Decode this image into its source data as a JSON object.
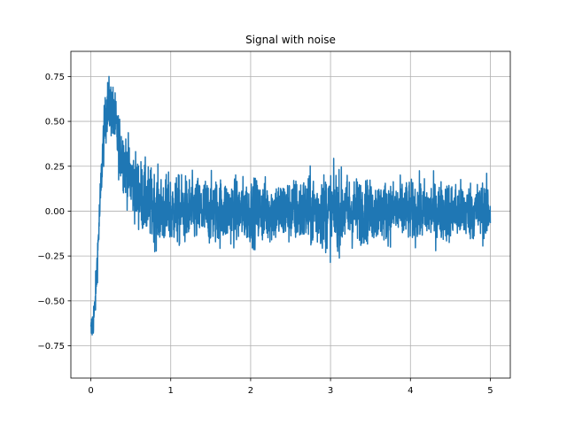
{
  "chart_data": {
    "type": "line",
    "title": "Signal with noise",
    "xlabel": "",
    "ylabel": "",
    "xlim": [
      -0.25,
      5.25
    ],
    "ylim": [
      -0.93,
      0.89
    ],
    "x_ticks": [
      0,
      1,
      2,
      3,
      4,
      5
    ],
    "x_tick_labels": [
      "0",
      "1",
      "2",
      "3",
      "4",
      "5"
    ],
    "y_ticks": [
      -0.75,
      -0.5,
      -0.25,
      0.0,
      0.25,
      0.5,
      0.75
    ],
    "y_tick_labels": [
      "−0.75",
      "−0.50",
      "−0.25",
      "0.00",
      "0.25",
      "0.50",
      "0.75"
    ],
    "grid": true,
    "line_color": "#1f77b4",
    "series": [
      {
        "x_range": [
          0,
          5
        ],
        "trend": {
          "x": [
            0,
            0.05,
            0.1,
            0.15,
            0.2,
            0.25,
            0.3,
            0.35,
            0.4,
            0.5,
            0.6,
            0.7,
            0.8,
            0.9,
            1.0,
            1.2,
            1.5,
            2.0,
            3.0,
            4.0,
            5.0
          ],
          "y": [
            -0.68,
            -0.55,
            -0.1,
            0.35,
            0.58,
            0.58,
            0.5,
            0.38,
            0.3,
            0.18,
            0.1,
            0.05,
            0.02,
            0.0,
            0.0,
            0.0,
            0.0,
            0.0,
            0.0,
            0.0,
            0.0
          ]
        },
        "noise_envelope": {
          "x": [
            0,
            0.1,
            0.2,
            0.3,
            0.5,
            0.7,
            1.0,
            1.5,
            2.0,
            2.5,
            3.0,
            3.5,
            4.0,
            4.5,
            5.0
          ],
          "amplitude": [
            0.1,
            0.13,
            0.17,
            0.18,
            0.2,
            0.22,
            0.21,
            0.2,
            0.19,
            0.19,
            0.24,
            0.18,
            0.18,
            0.18,
            0.17
          ]
        }
      }
    ]
  }
}
